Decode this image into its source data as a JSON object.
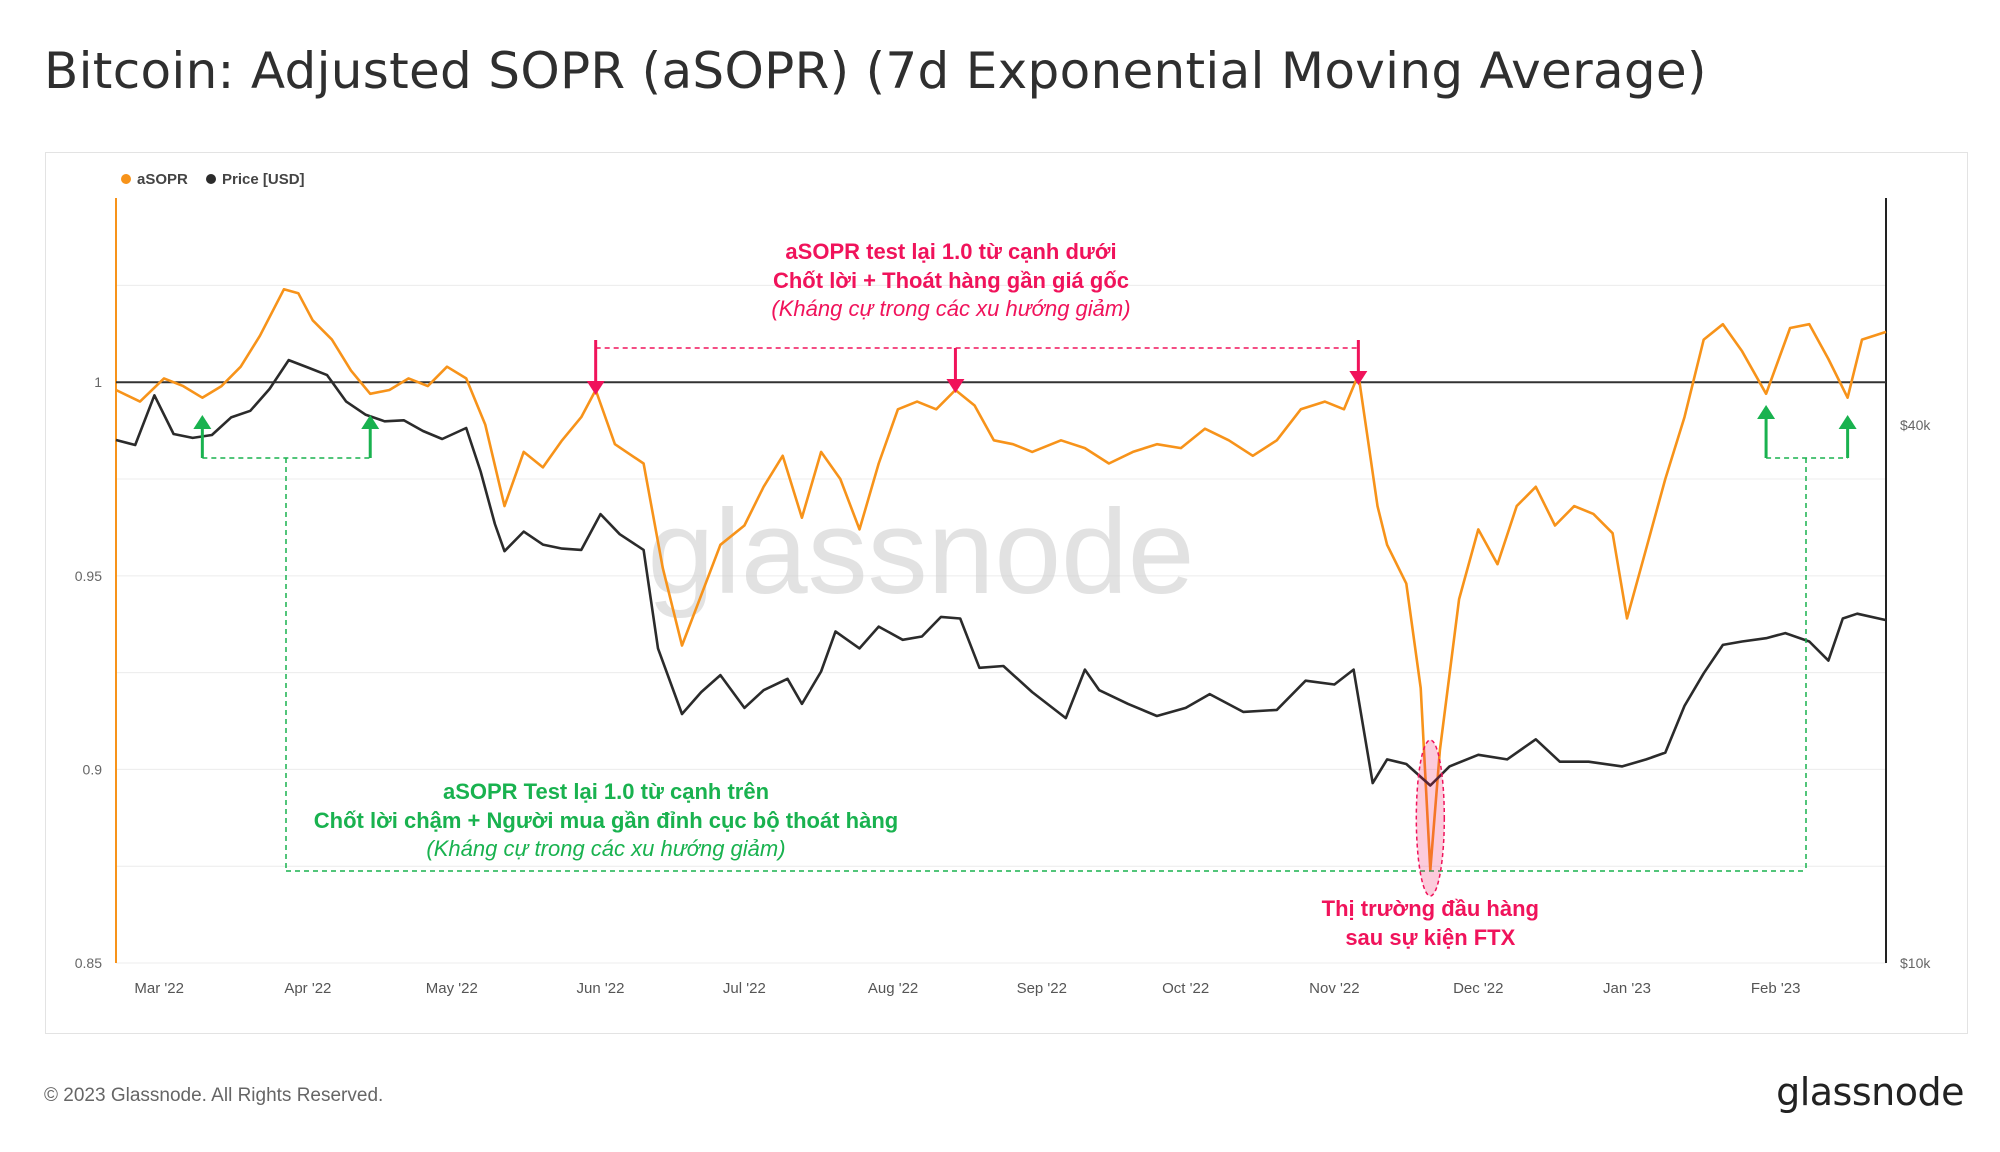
{
  "title": "Bitcoin: Adjusted SOPR (aSOPR) (7d Exponential Moving Average)",
  "footer": {
    "copyright": "© 2023 Glassnode. All Rights Reserved.",
    "logo": "glassnode"
  },
  "watermark": "glassnode",
  "colors": {
    "asopr": "#f7931a",
    "price": "#2b2b2b",
    "magenta": "#f0135b",
    "green": "#19b24f",
    "grid": "#ececec"
  },
  "chart_data": {
    "type": "line",
    "legend": {
      "placement": "top-left",
      "items": [
        {
          "label": "aSOPR",
          "color": "#f7931a"
        },
        {
          "label": "Price [USD]",
          "color": "#2b2b2b"
        }
      ]
    },
    "x_axis": {
      "ticks": [
        "Mar '22",
        "Apr '22",
        "May '22",
        "Jun '22",
        "Jul '22",
        "Aug '22",
        "Sep '22",
        "Oct '22",
        "Nov '22",
        "Dec '22",
        "Jan '23",
        "Feb '23"
      ],
      "range": [
        "2022-02-20",
        "2023-02-24"
      ]
    },
    "y_left": {
      "ticks": [
        "0.85",
        "0.9",
        "0.95",
        "1"
      ],
      "range": [
        0.85,
        1.045
      ],
      "reference_line": 1
    },
    "y_right": {
      "ticks": [
        "$10k",
        "$40k"
      ],
      "scale": "log",
      "range_usd": [
        10000,
        70000
      ]
    },
    "series": [
      {
        "name": "aSOPR",
        "axis": "left",
        "points": [
          [
            "2022-02-20",
            0.998
          ],
          [
            "2022-02-25",
            0.995
          ],
          [
            "2022-03-02",
            1.001
          ],
          [
            "2022-03-06",
            0.999
          ],
          [
            "2022-03-10",
            0.996
          ],
          [
            "2022-03-14",
            0.999
          ],
          [
            "2022-03-18",
            1.004
          ],
          [
            "2022-03-22",
            1.012
          ],
          [
            "2022-03-27",
            1.024
          ],
          [
            "2022-03-30",
            1.023
          ],
          [
            "2022-04-02",
            1.016
          ],
          [
            "2022-04-06",
            1.011
          ],
          [
            "2022-04-10",
            1.003
          ],
          [
            "2022-04-14",
            0.997
          ],
          [
            "2022-04-18",
            0.998
          ],
          [
            "2022-04-22",
            1.001
          ],
          [
            "2022-04-26",
            0.999
          ],
          [
            "2022-04-30",
            1.004
          ],
          [
            "2022-05-04",
            1.001
          ],
          [
            "2022-05-08",
            0.989
          ],
          [
            "2022-05-12",
            0.968
          ],
          [
            "2022-05-16",
            0.982
          ],
          [
            "2022-05-20",
            0.978
          ],
          [
            "2022-05-24",
            0.985
          ],
          [
            "2022-05-28",
            0.991
          ],
          [
            "2022-05-31",
            0.998
          ],
          [
            "2022-06-04",
            0.984
          ],
          [
            "2022-06-10",
            0.979
          ],
          [
            "2022-06-14",
            0.952
          ],
          [
            "2022-06-18",
            0.932
          ],
          [
            "2022-06-22",
            0.945
          ],
          [
            "2022-06-26",
            0.958
          ],
          [
            "2022-07-01",
            0.963
          ],
          [
            "2022-07-05",
            0.973
          ],
          [
            "2022-07-09",
            0.981
          ],
          [
            "2022-07-13",
            0.965
          ],
          [
            "2022-07-17",
            0.982
          ],
          [
            "2022-07-21",
            0.975
          ],
          [
            "2022-07-25",
            0.962
          ],
          [
            "2022-07-29",
            0.979
          ],
          [
            "2022-08-02",
            0.993
          ],
          [
            "2022-08-06",
            0.995
          ],
          [
            "2022-08-10",
            0.993
          ],
          [
            "2022-08-14",
            0.998
          ],
          [
            "2022-08-18",
            0.994
          ],
          [
            "2022-08-22",
            0.985
          ],
          [
            "2022-08-26",
            0.984
          ],
          [
            "2022-08-30",
            0.982
          ],
          [
            "2022-09-05",
            0.985
          ],
          [
            "2022-09-10",
            0.983
          ],
          [
            "2022-09-15",
            0.979
          ],
          [
            "2022-09-20",
            0.982
          ],
          [
            "2022-09-25",
            0.984
          ],
          [
            "2022-09-30",
            0.983
          ],
          [
            "2022-10-05",
            0.988
          ],
          [
            "2022-10-10",
            0.985
          ],
          [
            "2022-10-15",
            0.981
          ],
          [
            "2022-10-20",
            0.985
          ],
          [
            "2022-10-25",
            0.993
          ],
          [
            "2022-10-30",
            0.995
          ],
          [
            "2022-11-03",
            0.993
          ],
          [
            "2022-11-06",
            1.002
          ],
          [
            "2022-11-08",
            0.985
          ],
          [
            "2022-11-10",
            0.968
          ],
          [
            "2022-11-12",
            0.958
          ],
          [
            "2022-11-16",
            0.948
          ],
          [
            "2022-11-19",
            0.921
          ],
          [
            "2022-11-21",
            0.874
          ],
          [
            "2022-11-23",
            0.905
          ],
          [
            "2022-11-27",
            0.944
          ],
          [
            "2022-12-01",
            0.962
          ],
          [
            "2022-12-05",
            0.953
          ],
          [
            "2022-12-09",
            0.968
          ],
          [
            "2022-12-13",
            0.973
          ],
          [
            "2022-12-17",
            0.963
          ],
          [
            "2022-12-21",
            0.968
          ],
          [
            "2022-12-25",
            0.966
          ],
          [
            "2022-12-29",
            0.961
          ],
          [
            "2023-01-01",
            0.939
          ],
          [
            "2023-01-05",
            0.957
          ],
          [
            "2023-01-09",
            0.975
          ],
          [
            "2023-01-13",
            0.991
          ],
          [
            "2023-01-17",
            1.011
          ],
          [
            "2023-01-21",
            1.015
          ],
          [
            "2023-01-25",
            1.008
          ],
          [
            "2023-01-30",
            0.997
          ],
          [
            "2023-02-04",
            1.014
          ],
          [
            "2023-02-08",
            1.015
          ],
          [
            "2023-02-12",
            1.006
          ],
          [
            "2023-02-16",
            0.996
          ],
          [
            "2023-02-19",
            1.011
          ],
          [
            "2023-02-24",
            1.013
          ]
        ]
      },
      {
        "name": "Price [USD]",
        "axis": "right",
        "points": [
          [
            "2022-02-20",
            38500
          ],
          [
            "2022-02-24",
            38000
          ],
          [
            "2022-02-28",
            43200
          ],
          [
            "2022-03-04",
            39100
          ],
          [
            "2022-03-08",
            38700
          ],
          [
            "2022-03-12",
            39000
          ],
          [
            "2022-03-16",
            40800
          ],
          [
            "2022-03-20",
            41500
          ],
          [
            "2022-03-24",
            43900
          ],
          [
            "2022-03-28",
            47300
          ],
          [
            "2022-04-01",
            46400
          ],
          [
            "2022-04-05",
            45500
          ],
          [
            "2022-04-09",
            42500
          ],
          [
            "2022-04-13",
            41100
          ],
          [
            "2022-04-17",
            40400
          ],
          [
            "2022-04-21",
            40500
          ],
          [
            "2022-04-25",
            39400
          ],
          [
            "2022-04-29",
            38600
          ],
          [
            "2022-05-04",
            39700
          ],
          [
            "2022-05-07",
            35500
          ],
          [
            "2022-05-10",
            31000
          ],
          [
            "2022-05-12",
            28900
          ],
          [
            "2022-05-16",
            30400
          ],
          [
            "2022-05-20",
            29400
          ],
          [
            "2022-05-24",
            29100
          ],
          [
            "2022-05-28",
            29000
          ],
          [
            "2022-06-01",
            31800
          ],
          [
            "2022-06-05",
            30200
          ],
          [
            "2022-06-10",
            29000
          ],
          [
            "2022-06-13",
            22500
          ],
          [
            "2022-06-18",
            19000
          ],
          [
            "2022-06-22",
            20100
          ],
          [
            "2022-06-26",
            21000
          ],
          [
            "2022-07-01",
            19300
          ],
          [
            "2022-07-05",
            20200
          ],
          [
            "2022-07-10",
            20800
          ],
          [
            "2022-07-13",
            19500
          ],
          [
            "2022-07-17",
            21200
          ],
          [
            "2022-07-20",
            23500
          ],
          [
            "2022-07-25",
            22500
          ],
          [
            "2022-07-29",
            23800
          ],
          [
            "2022-08-03",
            23000
          ],
          [
            "2022-08-07",
            23200
          ],
          [
            "2022-08-11",
            24400
          ],
          [
            "2022-08-15",
            24300
          ],
          [
            "2022-08-19",
            21400
          ],
          [
            "2022-08-24",
            21500
          ],
          [
            "2022-08-30",
            20100
          ],
          [
            "2022-09-06",
            18800
          ],
          [
            "2022-09-10",
            21300
          ],
          [
            "2022-09-13",
            20200
          ],
          [
            "2022-09-19",
            19500
          ],
          [
            "2022-09-25",
            18900
          ],
          [
            "2022-10-01",
            19300
          ],
          [
            "2022-10-06",
            20000
          ],
          [
            "2022-10-13",
            19100
          ],
          [
            "2022-10-20",
            19200
          ],
          [
            "2022-10-26",
            20700
          ],
          [
            "2022-11-01",
            20500
          ],
          [
            "2022-11-05",
            21300
          ],
          [
            "2022-11-09",
            15900
          ],
          [
            "2022-11-12",
            16900
          ],
          [
            "2022-11-16",
            16700
          ],
          [
            "2022-11-21",
            15800
          ],
          [
            "2022-11-25",
            16600
          ],
          [
            "2022-12-01",
            17100
          ],
          [
            "2022-12-07",
            16900
          ],
          [
            "2022-12-13",
            17800
          ],
          [
            "2022-12-18",
            16800
          ],
          [
            "2022-12-24",
            16800
          ],
          [
            "2022-12-31",
            16600
          ],
          [
            "2023-01-05",
            16900
          ],
          [
            "2023-01-09",
            17200
          ],
          [
            "2023-01-13",
            19400
          ],
          [
            "2023-01-17",
            21100
          ],
          [
            "2023-01-21",
            22700
          ],
          [
            "2023-01-25",
            22900
          ],
          [
            "2023-01-30",
            23100
          ],
          [
            "2023-02-03",
            23400
          ],
          [
            "2023-02-08",
            22900
          ],
          [
            "2023-02-12",
            21800
          ],
          [
            "2023-02-15",
            24300
          ],
          [
            "2023-02-18",
            24600
          ],
          [
            "2023-02-24",
            24200
          ]
        ]
      }
    ],
    "annotations": [
      {
        "text": [
          "aSOPR test lại 1.0 từ cạnh dưới",
          "Chốt lời + Thoát hàng gần giá gốc",
          "(Kháng cự trong các xu hướng giảm)"
        ],
        "color": "#f0135b"
      },
      {
        "text": [
          "aSOPR Test lại 1.0 từ cạnh trên",
          "Chốt lời chậm + Người mua gần đỉnh cục bộ thoát hàng",
          "(Kháng cự trong các xu hướng giảm)"
        ],
        "color": "#19b24f"
      },
      {
        "text": [
          "Thị trường đầu hàng",
          "sau sự kiện FTX"
        ],
        "color": "#f0135b"
      }
    ]
  }
}
